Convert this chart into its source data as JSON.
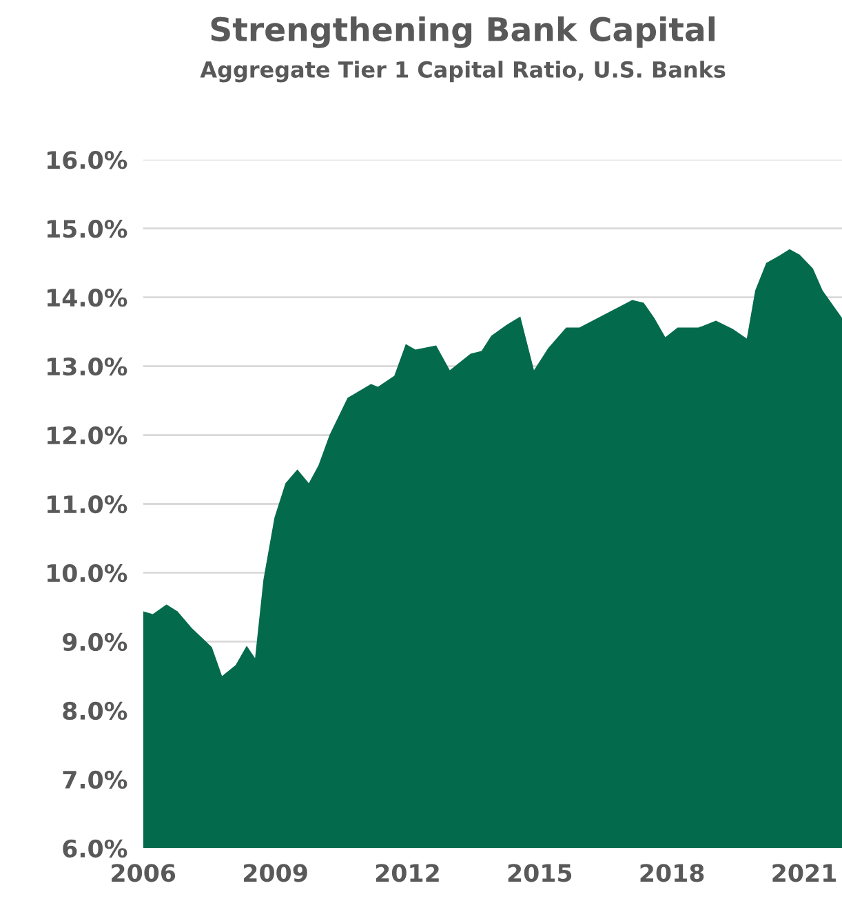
{
  "chart_data": {
    "type": "area",
    "title": "Strengthening Bank Capital",
    "subtitle": "Aggregate Tier 1 Capital Ratio, U.S. Banks",
    "x": [
      2006.0,
      2006.22,
      2006.53,
      2006.78,
      2007.1,
      2007.56,
      2007.79,
      2008.1,
      2008.35,
      2008.54,
      2008.73,
      2008.98,
      2009.23,
      2009.5,
      2009.76,
      2009.98,
      2010.23,
      2010.64,
      2011.17,
      2011.33,
      2011.7,
      2011.96,
      2012.18,
      2012.65,
      2012.96,
      2013.43,
      2013.68,
      2013.9,
      2014.25,
      2014.56,
      2014.87,
      2015.19,
      2015.6,
      2015.9,
      2016.8,
      2017.1,
      2017.36,
      2017.6,
      2017.85,
      2018.13,
      2018.6,
      2019.0,
      2019.38,
      2019.7,
      2019.89,
      2020.14,
      2020.42,
      2020.67,
      2020.9,
      2021.2,
      2021.42,
      2021.86
    ],
    "series": [
      {
        "color": "#036b4b",
        "values": [
          9.44,
          9.4,
          9.54,
          9.44,
          9.2,
          8.92,
          8.5,
          8.66,
          8.94,
          8.76,
          9.9,
          10.8,
          11.3,
          11.5,
          11.3,
          11.56,
          12.0,
          12.54,
          12.74,
          12.7,
          12.86,
          13.32,
          13.24,
          13.3,
          12.94,
          13.18,
          13.22,
          13.44,
          13.6,
          13.72,
          12.94,
          13.26,
          13.56,
          13.56,
          13.86,
          13.96,
          13.92,
          13.7,
          13.42,
          13.56,
          13.56,
          13.66,
          13.54,
          13.4,
          14.1,
          14.5,
          14.6,
          14.7,
          14.62,
          14.42,
          14.1,
          13.7
        ]
      }
    ],
    "xlim": [
      2006,
      2021.86
    ],
    "xticks": [
      2006,
      2009,
      2012,
      2015,
      2018,
      2021
    ],
    "ylim": [
      6,
      16
    ],
    "yticks": [
      {
        "value": 6,
        "label": "6.0%"
      },
      {
        "value": 7,
        "label": "7.0%"
      },
      {
        "value": 8,
        "label": "8.0%"
      },
      {
        "value": 9,
        "label": "9.0%"
      },
      {
        "value": 10,
        "label": "10.0%"
      },
      {
        "value": 11,
        "label": "11.0%"
      },
      {
        "value": 12,
        "label": "12.0%"
      },
      {
        "value": 13,
        "label": "13.0%"
      },
      {
        "value": 14,
        "label": "14.0%"
      },
      {
        "value": 15,
        "label": "15.0%"
      },
      {
        "value": 16,
        "label": "16.0%"
      }
    ],
    "grid": "y",
    "legend": false
  }
}
